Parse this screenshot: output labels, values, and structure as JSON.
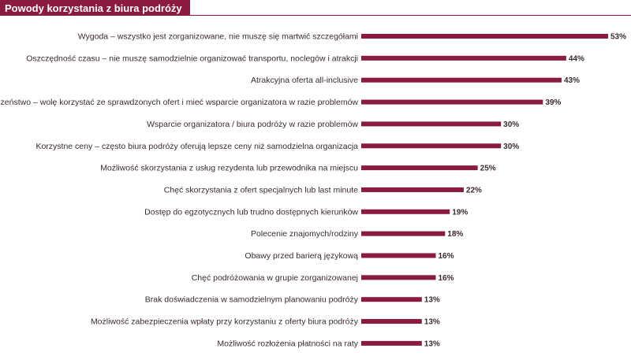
{
  "header": {
    "title": "Powody korzystania z biura podróży"
  },
  "colors": {
    "accent": "#8a1b3e",
    "text": "#3a2a30",
    "background": "#ffffff"
  },
  "chart_data": {
    "type": "bar",
    "orientation": "horizontal",
    "title": "Powody korzystania z biura podróży",
    "xlabel": "",
    "ylabel": "",
    "xlim": [
      0,
      53
    ],
    "grid": false,
    "legend": "none",
    "value_suffix": "%",
    "categories": [
      "Wygoda – wszystko jest zorganizowane, nie muszę się martwić szczegółami",
      "Oszczędność czasu – nie muszę samodzielnie organizować transportu, noclegów i atrakcji",
      "Atrakcyjna oferta all-inclusive",
      "Bezpieczeństwo – wolę korzystać ze sprawdzonych ofert i mieć wsparcie organizatora w razie problemów",
      "Wsparcie organizatora / biura podróży w razie problemów",
      "Korzystne ceny – często biura podróży oferują lepsze ceny niż samodzielna organizacja",
      "Możliwość skorzystania z usług rezydenta lub przewodnika na miejscu",
      "Chęć skorzystania z ofert specjalnych lub last minute",
      "Dostęp do egzotycznych lub trudno dostępnych kierunków",
      "Polecenie znajomych/rodziny",
      "Obawy przed barierą językową",
      "Chęć podróżowania w grupie zorganizowanej",
      "Brak doświadczenia w samodzielnym planowaniu podróży",
      "Możliwość zabezpieczenia wpłaty przy korzystaniu z oferty biura podróży",
      "Możliwość rozłożenia płatności na raty"
    ],
    "values": [
      53,
      44,
      43,
      39,
      30,
      30,
      25,
      22,
      19,
      18,
      16,
      16,
      13,
      13,
      13
    ]
  }
}
